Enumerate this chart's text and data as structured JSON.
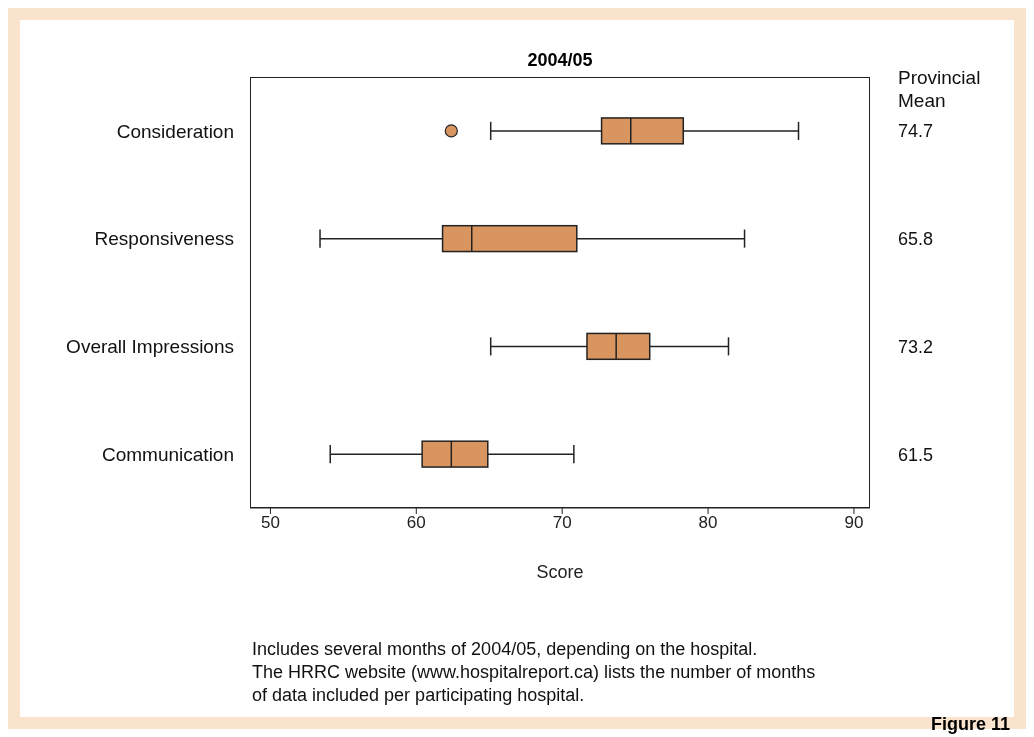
{
  "chart_data": {
    "type": "box",
    "title": "2004/05",
    "orientation": "horizontal",
    "categories": [
      "Consideration",
      "Responsiveness",
      "Overall Impressions",
      "Communication"
    ],
    "y2_categories": [
      "74.7",
      "65.8",
      "73.2",
      "61.5"
    ],
    "y2label": "Provincial Mean",
    "xlabel": "Score",
    "color": "#d9955f",
    "boxes": [
      {
        "low": 65.1,
        "q1": 72.7,
        "median": 74.7,
        "q3": 78.3,
        "high": 86.2,
        "outliers": [
          62.4
        ]
      },
      {
        "low": 53.4,
        "q1": 61.8,
        "median": 63.8,
        "q3": 71.0,
        "high": 82.5
      },
      {
        "low": 65.1,
        "q1": 71.7,
        "median": 73.7,
        "q3": 76.0,
        "high": 81.4
      },
      {
        "low": 54.1,
        "q1": 60.4,
        "median": 62.4,
        "q3": 64.9,
        "high": 70.8
      }
    ],
    "xlim": [
      48.6,
      91.1
    ],
    "xticks": [
      50,
      60,
      70,
      80,
      90
    ],
    "grid": false,
    "legend": false,
    "annotations": [
      "Includes several months of 2004/05, depending on the hospital.",
      "The HRRC website (www.hospitalreport.ca) lists the number of months",
      "of data included per participating hospital.",
      "Figure 11"
    ]
  }
}
